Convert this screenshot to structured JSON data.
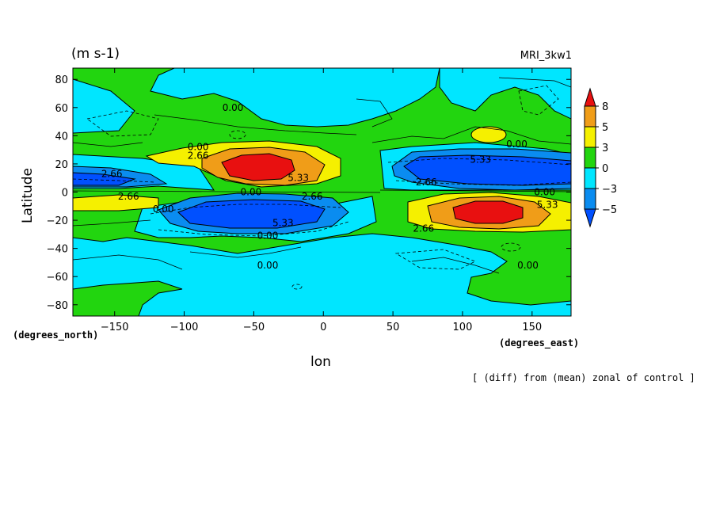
{
  "chart_data": {
    "type": "heatmap",
    "units": "(m s-1)",
    "model": "MRI_3kw1",
    "ylabel": "Latitude",
    "xlabel": "lon",
    "y_unit": "(degrees_north)",
    "x_unit": "(degrees_east)",
    "caption": "[ (diff) from (mean) zonal of control ]",
    "xlim": [
      -180,
      178
    ],
    "ylim": [
      -88,
      88
    ],
    "x_ticks": [
      -150,
      -100,
      -50,
      0,
      50,
      100,
      150
    ],
    "y_ticks": [
      80,
      60,
      40,
      20,
      0,
      -20,
      -40,
      -60,
      -80
    ],
    "colorbar": {
      "labels": [
        "8",
        "5",
        "3",
        "0",
        "-3",
        "-5"
      ],
      "colors": [
        "#e81010",
        "#f09d18",
        "#f5f000",
        "#22d50f",
        "#00e6ff",
        "#0a8cf0",
        "#0050ff"
      ]
    },
    "contour_labels": [
      {
        "text": "0.00",
        "lon": -65,
        "lat": 60
      },
      {
        "text": "0.00",
        "lon": -90,
        "lat": 32
      },
      {
        "text": "2.66",
        "lon": -90,
        "lat": 26
      },
      {
        "text": "2.66",
        "lon": -152,
        "lat": 13
      },
      {
        "text": "2.66",
        "lon": -140,
        "lat": -3
      },
      {
        "text": "0.00",
        "lon": -115,
        "lat": -12
      },
      {
        "text": "0.00",
        "lon": -52,
        "lat": 0
      },
      {
        "text": "5.33",
        "lon": -18,
        "lat": 10
      },
      {
        "text": "2.66",
        "lon": -8,
        "lat": -3
      },
      {
        "text": "5.33",
        "lon": -29,
        "lat": -22
      },
      {
        "text": "0.00",
        "lon": -40,
        "lat": -31
      },
      {
        "text": "0.00",
        "lon": -40,
        "lat": -52
      },
      {
        "text": "5.33",
        "lon": 113,
        "lat": 23
      },
      {
        "text": "0.00",
        "lon": 139,
        "lat": 34
      },
      {
        "text": "2.66",
        "lon": 74,
        "lat": 7
      },
      {
        "text": "0.00",
        "lon": 159,
        "lat": 0
      },
      {
        "text": "5.33",
        "lon": 161,
        "lat": -9
      },
      {
        "text": "2.66",
        "lon": 72,
        "lat": -26
      },
      {
        "text": "0.00",
        "lon": 147,
        "lat": -52
      }
    ],
    "features": [
      {
        "type": "max",
        "value": 8,
        "lon": -45,
        "lat": 16,
        "rx": 40,
        "ry": 13
      },
      {
        "type": "max",
        "value": 8,
        "lon": 118,
        "lat": -14,
        "rx": 40,
        "ry": 13
      },
      {
        "type": "min",
        "value": -5,
        "lon": -45,
        "lat": -18,
        "rx": 48,
        "ry": 12
      },
      {
        "type": "min",
        "value": -5,
        "lon": 122,
        "lat": 15,
        "rx": 50,
        "ry": 12
      },
      {
        "type": "min",
        "value": -5,
        "lon": -162,
        "lat": 8,
        "rx": 30,
        "ry": 7
      },
      {
        "type": "max",
        "value": 5,
        "lon": -160,
        "lat": -9,
        "rx": 32,
        "ry": 6
      }
    ]
  }
}
